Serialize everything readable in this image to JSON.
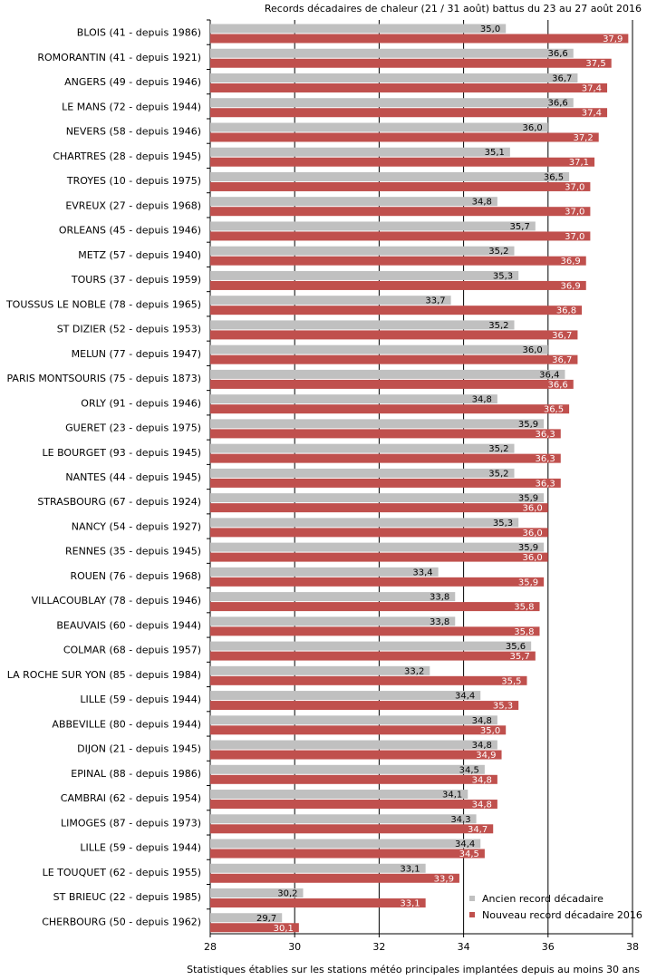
{
  "chart_data": {
    "type": "bar",
    "orientation": "horizontal",
    "title": "Records décadaires de chaleur (21 / 31 août) battus du 23 au 27 août 2016",
    "footer": "Statistiques établies sur les stations météo principales implantées depuis au moins 30 ans",
    "xlim": [
      28,
      38
    ],
    "x_ticks": [
      "28",
      "30",
      "32",
      "34",
      "36",
      "38"
    ],
    "grid": "vertical",
    "legend_position": "bottom-right",
    "categories": [
      "BLOIS (41 - depuis 1986)",
      "ROMORANTIN (41 - depuis 1921)",
      "ANGERS (49 - depuis 1946)",
      "LE MANS (72 - depuis 1944)",
      "NEVERS (58 - depuis 1946)",
      "CHARTRES (28 - depuis 1945)",
      "TROYES (10 - depuis 1975)",
      "EVREUX (27 - depuis 1968)",
      "ORLEANS (45 - depuis 1946)",
      "METZ (57 - depuis 1940)",
      "TOURS (37 - depuis 1959)",
      "TOUSSUS LE NOBLE (78 - depuis 1965)",
      "ST DIZIER (52 - depuis 1953)",
      "MELUN (77 - depuis 1947)",
      "PARIS MONTSOURIS (75 - depuis 1873)",
      "ORLY (91 - depuis 1946)",
      "GUERET (23 - depuis 1975)",
      "LE BOURGET (93 - depuis 1945)",
      "NANTES (44 - depuis 1945)",
      "STRASBOURG (67 - depuis 1924)",
      "NANCY (54 - depuis 1927)",
      "RENNES (35 - depuis 1945)",
      "ROUEN (76 - depuis 1968)",
      "VILLACOUBLAY (78 - depuis 1946)",
      "BEAUVAIS (60 - depuis 1944)",
      "COLMAR (68 - depuis 1957)",
      "LA ROCHE SUR YON (85 - depuis 1984)",
      "LILLE (59 - depuis 1944)",
      "ABBEVILLE (80 - depuis 1944)",
      "DIJON (21 - depuis 1945)",
      "EPINAL (88 - depuis 1986)",
      "CAMBRAI (62 - depuis 1954)",
      "LIMOGES (87 - depuis 1973)",
      "LILLE (59 - depuis 1944)",
      "LE TOUQUET (62 - depuis 1955)",
      "ST BRIEUC (22 - depuis 1985)",
      "CHERBOURG (50 - depuis 1962)"
    ],
    "series": [
      {
        "name": "Ancien record décadaire",
        "color": "#c0c0c0",
        "values": [
          35.0,
          36.6,
          36.7,
          36.6,
          36.0,
          35.1,
          36.5,
          34.8,
          35.7,
          35.2,
          35.3,
          33.7,
          35.2,
          36.0,
          36.4,
          34.8,
          35.9,
          35.2,
          35.2,
          35.9,
          35.3,
          35.9,
          33.4,
          33.8,
          33.8,
          35.6,
          33.2,
          34.4,
          34.8,
          34.8,
          34.5,
          34.1,
          34.3,
          34.4,
          33.1,
          30.2,
          29.7
        ],
        "labels": [
          "35,0",
          "36,6",
          "36,7",
          "36,6",
          "36,0",
          "35,1",
          "36,5",
          "34,8",
          "35,7",
          "35,2",
          "35,3",
          "33,7",
          "35,2",
          "36,0",
          "36,4",
          "34,8",
          "35,9",
          "35,2",
          "35,2",
          "35,9",
          "35,3",
          "35,9",
          "33,4",
          "33,8",
          "33,8",
          "35,6",
          "33,2",
          "34,4",
          "34,8",
          "34,8",
          "34,5",
          "34,1",
          "34,3",
          "34,4",
          "33,1",
          "30,2",
          "29,7"
        ]
      },
      {
        "name": "Nouveau record décadaire 2016",
        "color": "#c0504d",
        "values": [
          37.9,
          37.5,
          37.4,
          37.4,
          37.2,
          37.1,
          37.0,
          37.0,
          37.0,
          36.9,
          36.9,
          36.8,
          36.7,
          36.7,
          36.6,
          36.5,
          36.3,
          36.3,
          36.3,
          36.0,
          36.0,
          36.0,
          35.9,
          35.8,
          35.8,
          35.7,
          35.5,
          35.3,
          35.0,
          34.9,
          34.8,
          34.8,
          34.7,
          34.5,
          33.9,
          33.1,
          30.1
        ],
        "labels": [
          "37,9",
          "37,5",
          "37,4",
          "37,4",
          "37,2",
          "37,1",
          "37,0",
          "37,0",
          "37,0",
          "36,9",
          "36,9",
          "36,8",
          "36,7",
          "36,7",
          "36,6",
          "36,5",
          "36,3",
          "36,3",
          "36,3",
          "36,0",
          "36,0",
          "36,0",
          "35,9",
          "35,8",
          "35,8",
          "35,7",
          "35,5",
          "35,3",
          "35,0",
          "34,9",
          "34,8",
          "34,8",
          "34,7",
          "34,5",
          "33,9",
          "33,1",
          "30,1"
        ]
      }
    ]
  }
}
